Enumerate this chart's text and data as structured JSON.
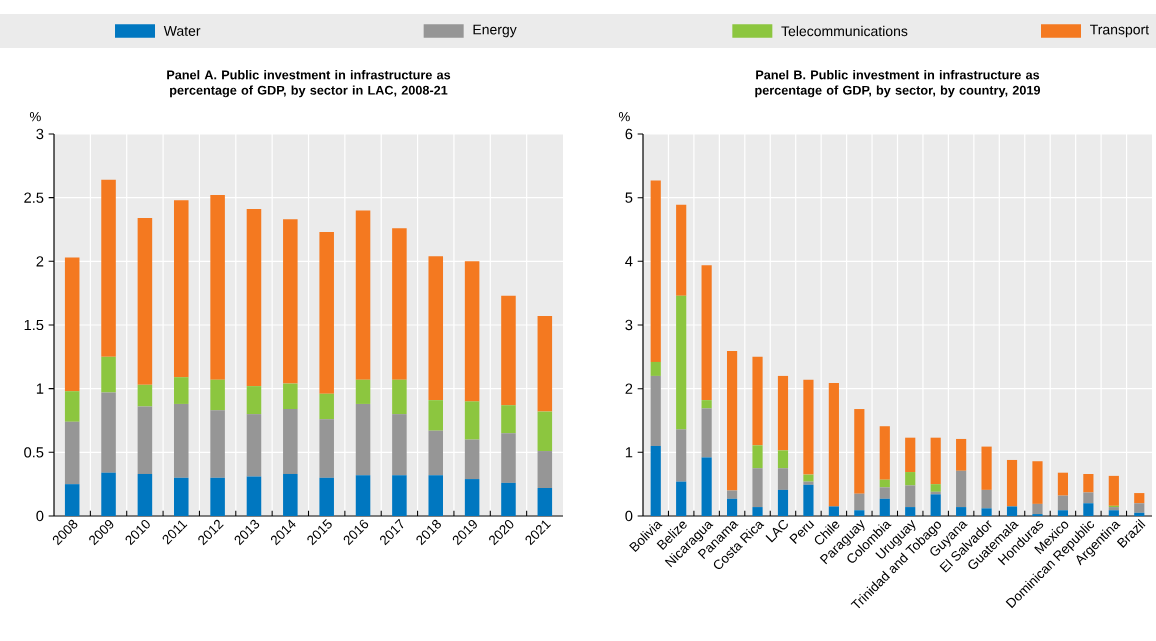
{
  "chart_data": [
    {
      "type": "bar",
      "stacked": true,
      "title": "Panel A. Public investment in infrastructure as percentage of GDP, by sector in LAC, 2008-21",
      "ylabel": "%",
      "categories": [
        "2008",
        "2009",
        "2010",
        "2011",
        "2012",
        "2013",
        "2014",
        "2015",
        "2016",
        "2017",
        "2018",
        "2019",
        "2020",
        "2021"
      ],
      "series": [
        {
          "name": "Water",
          "color": "#0077c0",
          "values": [
            0.25,
            0.34,
            0.33,
            0.3,
            0.3,
            0.31,
            0.33,
            0.3,
            0.32,
            0.32,
            0.32,
            0.29,
            0.26,
            0.22
          ]
        },
        {
          "name": "Energy",
          "color": "#969696",
          "values": [
            0.49,
            0.63,
            0.53,
            0.58,
            0.53,
            0.49,
            0.51,
            0.46,
            0.56,
            0.48,
            0.35,
            0.31,
            0.39,
            0.29
          ]
        },
        {
          "name": "Telecommunications",
          "color": "#8cc63f",
          "values": [
            0.24,
            0.28,
            0.17,
            0.21,
            0.24,
            0.22,
            0.2,
            0.2,
            0.19,
            0.27,
            0.24,
            0.3,
            0.22,
            0.31
          ]
        },
        {
          "name": "Transport",
          "color": "#f47920",
          "values": [
            1.05,
            1.39,
            1.31,
            1.39,
            1.45,
            1.39,
            1.29,
            1.27,
            1.33,
            1.19,
            1.13,
            1.1,
            0.86,
            0.75
          ]
        }
      ],
      "ylim": [
        0,
        3
      ],
      "yticks": [
        0,
        0.5,
        1,
        1.5,
        2,
        2.5,
        3
      ],
      "grid": true,
      "legend": "top"
    },
    {
      "type": "bar",
      "stacked": true,
      "title": "Panel B. Public investment in infrastructure as percentage of GDP, by sector, by country, 2019",
      "ylabel": "%",
      "categories": [
        "Bolivia",
        "Belize",
        "Nicaragua",
        "Panama",
        "Costa Rica",
        "LAC",
        "Peru",
        "Chile",
        "Paraguay",
        "Colombia",
        "Uruguay",
        "Trinidad and Tobago",
        "Guyana",
        "El Salvador",
        "Guatemala",
        "Honduras",
        "Mexico",
        "Dominican Republic",
        "Argentina",
        "Brazil"
      ],
      "series": [
        {
          "color": "#0077c0",
          "values": [
            1.1,
            0.54,
            0.92,
            0.27,
            0.14,
            0.41,
            0.49,
            0.15,
            0.09,
            0.27,
            0.14,
            0.34,
            0.14,
            0.12,
            0.15,
            0.03,
            0.09,
            0.2,
            0.09,
            0.05
          ]
        },
        {
          "color": "#969696",
          "values": [
            1.1,
            0.82,
            0.77,
            0.13,
            0.61,
            0.34,
            0.05,
            null,
            0.26,
            0.18,
            0.34,
            0.04,
            0.57,
            0.29,
            null,
            0.16,
            0.23,
            0.17,
            0.05,
            0.15
          ]
        },
        {
          "color": "#8cc63f",
          "values": [
            0.22,
            2.1,
            0.13,
            0,
            0.36,
            0.28,
            0.11,
            0,
            0,
            0.12,
            0.21,
            0.12,
            0,
            0,
            0,
            0,
            0,
            0,
            0.02,
            0
          ]
        },
        {
          "color": "#f47920",
          "values": [
            2.85,
            1.43,
            2.12,
            2.19,
            1.39,
            1.17,
            1.49,
            1.94,
            1.33,
            0.84,
            0.54,
            0.73,
            0.5,
            0.68,
            0.73,
            0.67,
            0.36,
            0.29,
            0.47,
            0.16
          ]
        }
      ],
      "ylim": [
        0,
        6
      ],
      "yticks": [
        0,
        1,
        2,
        3,
        4,
        5,
        6
      ],
      "grid": true
    }
  ]
}
